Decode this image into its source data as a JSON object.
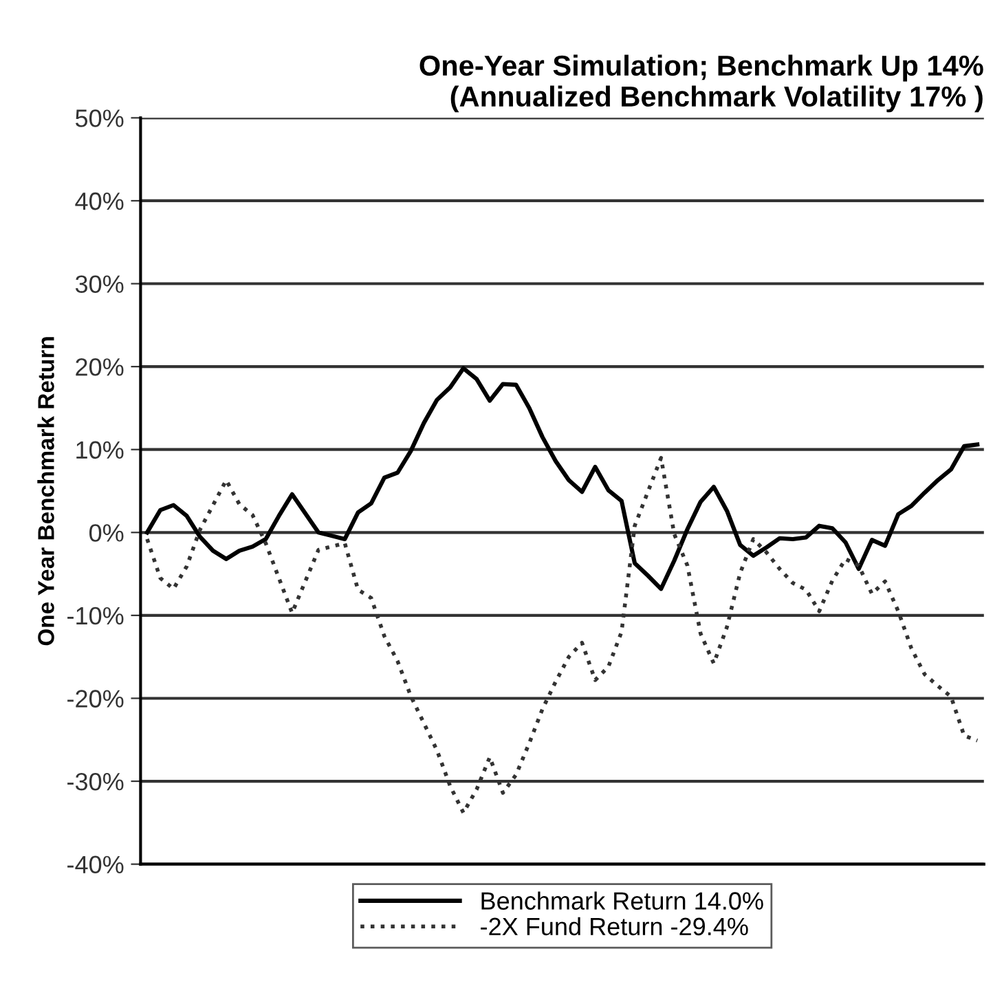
{
  "chart_data": {
    "type": "line",
    "title": "One-Year Simulation; Benchmark Up 14%\n(Annualized Benchmark Volatility 17% )",
    "ylabel": "One Year Benchmark Return",
    "categories": [
      null,
      null,
      null,
      null,
      null,
      null,
      null,
      null,
      null,
      null,
      null,
      null,
      null,
      null,
      null,
      null,
      null,
      null,
      null,
      null,
      null,
      null,
      null,
      null,
      null,
      null,
      null,
      null,
      null,
      null,
      null,
      null,
      null,
      null,
      null,
      null,
      null,
      null,
      null,
      null,
      null,
      null,
      null,
      null,
      null,
      null,
      null,
      null,
      null,
      null,
      null,
      null,
      null,
      null,
      null,
      null,
      null,
      null,
      null,
      null,
      null,
      null,
      null,
      null
    ],
    "ylim": [
      -40,
      50
    ],
    "yticks": [
      {
        "value": -40,
        "label": "-40%"
      },
      {
        "value": -30,
        "label": "-30%"
      },
      {
        "value": -20,
        "label": "-20%"
      },
      {
        "value": -10,
        "label": "-10%"
      },
      {
        "value": 0,
        "label": "0%"
      },
      {
        "value": 10,
        "label": "10%"
      },
      {
        "value": 20,
        "label": "20%"
      },
      {
        "value": 30,
        "label": "30%"
      },
      {
        "value": 40,
        "label": "40%"
      },
      {
        "value": 50,
        "label": "50%"
      }
    ],
    "grid": "y",
    "legend": "bottom",
    "series": [
      {
        "name": "Benchmark Return 14.0%",
        "color": "#000000",
        "line_style": "solid",
        "values": [
          0,
          2.7,
          3.3,
          2.0,
          -0.5,
          -2.2,
          -3.2,
          -2.2,
          -1.7,
          -0.8,
          2.0,
          4.6,
          2.3,
          0,
          -0.4,
          -0.8,
          2.4,
          3.5,
          6.6,
          7.2,
          9.8,
          13.2,
          16.0,
          17.5,
          19.8,
          18.5,
          15.9,
          17.9,
          17.8,
          15.0,
          11.5,
          8.6,
          6.3,
          4.9,
          7.9,
          5.1,
          3.8,
          -3.7,
          -5.2,
          -6.8,
          -3.4,
          0.4,
          3.7,
          5.5,
          2.6,
          -1.5,
          -2.8,
          -1.8,
          -0.7,
          -0.8,
          -0.6,
          0.8,
          0.5,
          -1.2,
          -4.4,
          -0.9,
          -1.6,
          2.2,
          3.2,
          4.8,
          6.3,
          7.6,
          10.4,
          10.6
        ]
      },
      {
        "name": "-2X Fund Return -29.4%",
        "color": "#333333",
        "line_style": "dotted",
        "values": [
          -0.8,
          -5.5,
          -6.8,
          -4.1,
          0.3,
          3.3,
          6.3,
          3.4,
          2.1,
          -1.3,
          -5.5,
          -9.7,
          -5.9,
          -2.1,
          -1.7,
          -1.3,
          -6.9,
          -7.9,
          -12.5,
          -15.5,
          -19.7,
          -23.0,
          -26.3,
          -30.6,
          -33.8,
          -31.0,
          -27.1,
          -31.4,
          -29.2,
          -25.4,
          -21.3,
          -18.0,
          -15.0,
          -13.3,
          -17.8,
          -16.2,
          -12.0,
          0.8,
          4.9,
          9.0,
          -0.2,
          -4.0,
          -12.2,
          -15.8,
          -11.4,
          -4.9,
          -0.8,
          -2.4,
          -4.4,
          -6.1,
          -6.9,
          -9.5,
          -5.8,
          -3.2,
          -4.0,
          -7.4,
          -5.9,
          -9.5,
          -14.0,
          -17.1,
          -18.5,
          -19.8,
          -24.5,
          -25.1
        ]
      }
    ]
  }
}
